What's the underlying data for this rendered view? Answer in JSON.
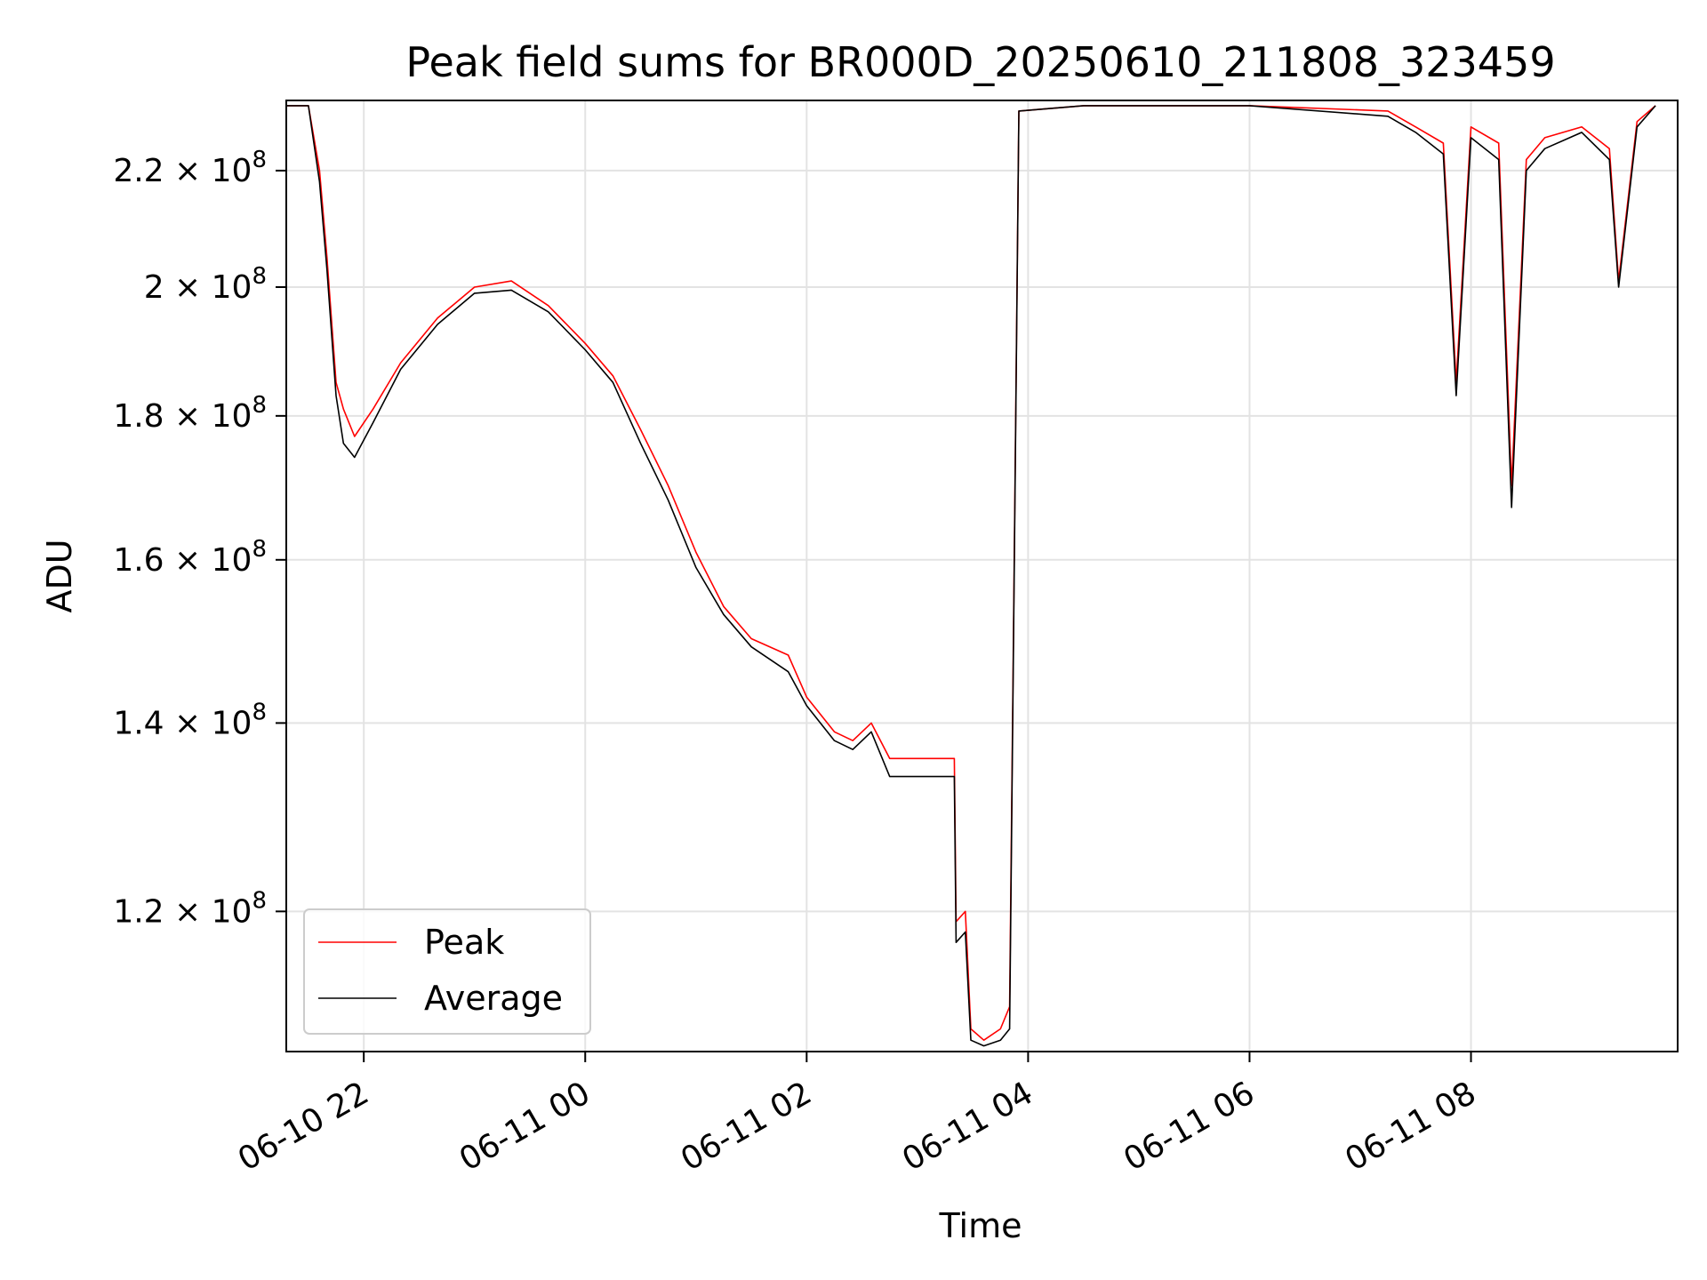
{
  "chart_data": {
    "type": "line",
    "title": "Peak field sums for BR000D_20250610_211808_323459",
    "xlabel": "Time",
    "ylabel": "ADU",
    "yscale": "log",
    "ylim": [
      107000000,
      233000000
    ],
    "xlim": [
      "2025-06-10 21:18",
      "2025-06-11 09:52"
    ],
    "grid": true,
    "legend_position": "lower-left",
    "x_ticks": [
      {
        "t": "2025-06-10 22:00",
        "label": "06-10 22"
      },
      {
        "t": "2025-06-11 00:00",
        "label": "06-11 00"
      },
      {
        "t": "2025-06-11 02:00",
        "label": "06-11 02"
      },
      {
        "t": "2025-06-11 04:00",
        "label": "06-11 04"
      },
      {
        "t": "2025-06-11 06:00",
        "label": "06-11 06"
      },
      {
        "t": "2025-06-11 08:00",
        "label": "06-11 08"
      }
    ],
    "y_ticks": [
      {
        "value": 120000000,
        "mantissa": "1.2",
        "base": "10",
        "exp": "8"
      },
      {
        "value": 140000000,
        "mantissa": "1.4",
        "base": "10",
        "exp": "8"
      },
      {
        "value": 160000000,
        "mantissa": "1.6",
        "base": "10",
        "exp": "8"
      },
      {
        "value": 180000000,
        "mantissa": "1.8",
        "base": "10",
        "exp": "8"
      },
      {
        "value": 200000000,
        "mantissa": "2",
        "base": "10",
        "exp": "8"
      },
      {
        "value": 220000000,
        "mantissa": "2.2",
        "base": "10",
        "exp": "8"
      }
    ],
    "series": [
      {
        "name": "Peak",
        "color": "#ff0000",
        "x": [
          "2025-06-10 21:18",
          "2025-06-10 21:30",
          "2025-06-10 21:36",
          "2025-06-10 21:40",
          "2025-06-10 21:45",
          "2025-06-10 21:49",
          "2025-06-10 21:55",
          "2025-06-10 22:05",
          "2025-06-10 22:20",
          "2025-06-10 22:40",
          "2025-06-10 23:00",
          "2025-06-10 23:20",
          "2025-06-10 23:40",
          "2025-06-11 00:00",
          "2025-06-11 00:15",
          "2025-06-11 00:30",
          "2025-06-11 00:45",
          "2025-06-11 01:00",
          "2025-06-11 01:15",
          "2025-06-11 01:30",
          "2025-06-11 01:50",
          "2025-06-11 02:00",
          "2025-06-11 02:15",
          "2025-06-11 02:25",
          "2025-06-11 02:35",
          "2025-06-11 02:45",
          "2025-06-11 03:00",
          "2025-06-11 03:20",
          "2025-06-11 03:21",
          "2025-06-11 03:26",
          "2025-06-11 03:29",
          "2025-06-11 03:36",
          "2025-06-11 03:45",
          "2025-06-11 03:50",
          "2025-06-11 03:55",
          "2025-06-11 04:30",
          "2025-06-11 06:00",
          "2025-06-11 07:15",
          "2025-06-11 07:30",
          "2025-06-11 07:45",
          "2025-06-11 07:52",
          "2025-06-11 08:00",
          "2025-06-11 08:15",
          "2025-06-11 08:22",
          "2025-06-11 08:30",
          "2025-06-11 08:40",
          "2025-06-11 09:00",
          "2025-06-11 09:15",
          "2025-06-11 09:20",
          "2025-06-11 09:30",
          "2025-06-11 09:40"
        ],
        "values": [
          232000000,
          232000000,
          220000000,
          205000000,
          185000000,
          181000000,
          177000000,
          181000000,
          188000000,
          195000000,
          200000000,
          201000000,
          197000000,
          191000000,
          186000000,
          178000000,
          170000000,
          161000000,
          154000000,
          150000000,
          148000000,
          143000000,
          139000000,
          138000000,
          140000000,
          136000000,
          136000000,
          136000000,
          119000000,
          120000000,
          109000000,
          108000000,
          109000000,
          111000000,
          231000000,
          232000000,
          232000000,
          231000000,
          228000000,
          225000000,
          185000000,
          228000000,
          225000000,
          170000000,
          222000000,
          226000000,
          228000000,
          224000000,
          201000000,
          229000000,
          232000000
        ]
      },
      {
        "name": "Average",
        "color": "#000000",
        "x": [
          "2025-06-10 21:18",
          "2025-06-10 21:30",
          "2025-06-10 21:36",
          "2025-06-10 21:40",
          "2025-06-10 21:45",
          "2025-06-10 21:49",
          "2025-06-10 21:55",
          "2025-06-10 22:05",
          "2025-06-10 22:20",
          "2025-06-10 22:40",
          "2025-06-10 23:00",
          "2025-06-10 23:20",
          "2025-06-10 23:40",
          "2025-06-11 00:00",
          "2025-06-11 00:15",
          "2025-06-11 00:30",
          "2025-06-11 00:45",
          "2025-06-11 01:00",
          "2025-06-11 01:15",
          "2025-06-11 01:30",
          "2025-06-11 01:50",
          "2025-06-11 02:00",
          "2025-06-11 02:15",
          "2025-06-11 02:25",
          "2025-06-11 02:35",
          "2025-06-11 02:45",
          "2025-06-11 03:00",
          "2025-06-11 03:20",
          "2025-06-11 03:21",
          "2025-06-11 03:26",
          "2025-06-11 03:29",
          "2025-06-11 03:36",
          "2025-06-11 03:45",
          "2025-06-11 03:50",
          "2025-06-11 03:55",
          "2025-06-11 04:30",
          "2025-06-11 06:00",
          "2025-06-11 07:15",
          "2025-06-11 07:30",
          "2025-06-11 07:45",
          "2025-06-11 07:52",
          "2025-06-11 08:00",
          "2025-06-11 08:15",
          "2025-06-11 08:22",
          "2025-06-11 08:30",
          "2025-06-11 08:40",
          "2025-06-11 09:00",
          "2025-06-11 09:15",
          "2025-06-11 09:20",
          "2025-06-11 09:30",
          "2025-06-11 09:40"
        ],
        "values": [
          232000000,
          232000000,
          218000000,
          203000000,
          183000000,
          176000000,
          174000000,
          179000000,
          187000000,
          194000000,
          199000000,
          199500000,
          196000000,
          190000000,
          185000000,
          176000000,
          168000000,
          159000000,
          153000000,
          149000000,
          146000000,
          142000000,
          138000000,
          137000000,
          139000000,
          134000000,
          134000000,
          134000000,
          117000000,
          118000000,
          108000000,
          107500000,
          108000000,
          109000000,
          231000000,
          232000000,
          232000000,
          230000000,
          227000000,
          223000000,
          183000000,
          226000000,
          222000000,
          167000000,
          220000000,
          224000000,
          227000000,
          222000000,
          200000000,
          228000000,
          232000000
        ]
      }
    ],
    "legend": [
      {
        "label": "Peak",
        "color": "#ff0000"
      },
      {
        "label": "Average",
        "color": "#000000"
      }
    ]
  }
}
